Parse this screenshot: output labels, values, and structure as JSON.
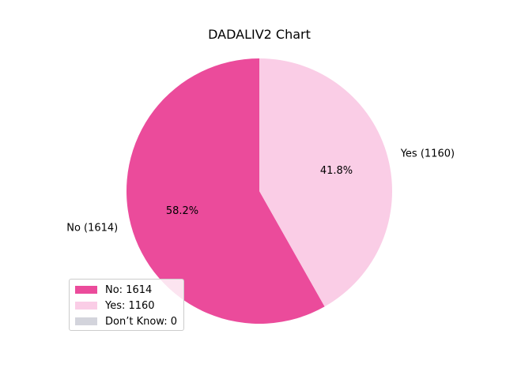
{
  "chart_data": {
    "type": "pie",
    "title": "DADALIV2 Chart",
    "categories": [
      "No",
      "Yes",
      "Don’t Know"
    ],
    "values": [
      1614,
      1160,
      0
    ],
    "slice_labels": [
      "No (1614)",
      "Yes (1160)",
      ""
    ],
    "percent_labels": [
      "58.2%",
      "41.8%",
      ""
    ],
    "colors": [
      "#eb4b9b",
      "#facde6",
      "#d3d4dc"
    ],
    "start_angle_deg": 90,
    "direction": "counterclockwise",
    "legend": {
      "placement": "lower-left",
      "entries": [
        {
          "label": "No: 1614",
          "color": "#eb4b9b"
        },
        {
          "label": "Yes: 1160",
          "color": "#facde6"
        },
        {
          "label": "Don’t Know: 0",
          "color": "#d3d4dc"
        }
      ]
    }
  }
}
